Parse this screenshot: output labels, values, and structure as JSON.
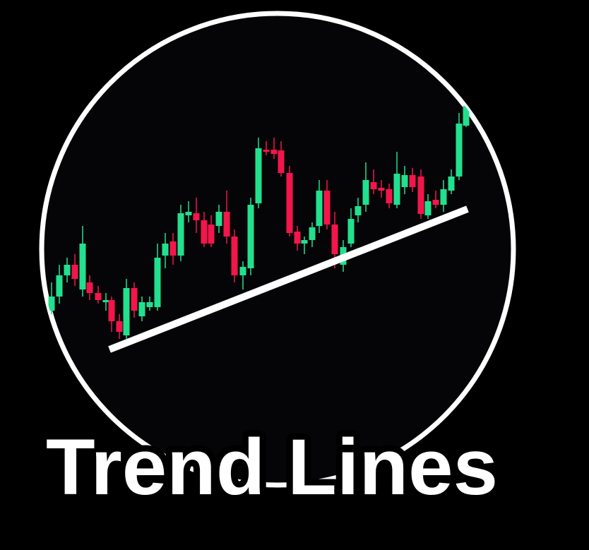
{
  "title": "Trend Lines"
}
